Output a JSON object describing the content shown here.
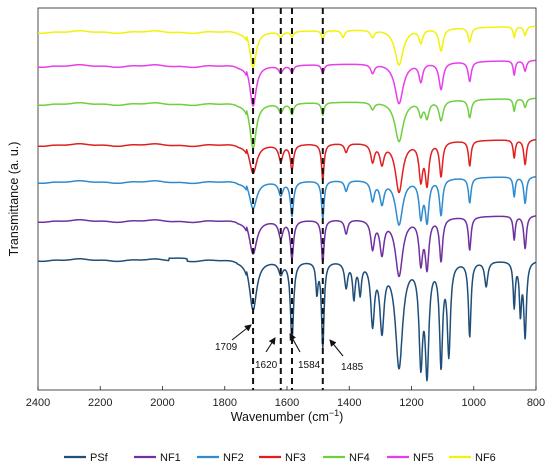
{
  "chart_data": {
    "type": "line",
    "title": "",
    "xlabel": "Wavenumber (cm",
    "xlabel_sup": "−1",
    "xlabel_close": ")",
    "ylabel": "Transmittance (a. u.)",
    "xlim": [
      2400,
      800
    ],
    "x_reversed": true,
    "x_ticks": [
      "2400",
      "2200",
      "2000",
      "1800",
      "1600",
      "1400",
      "1200",
      "1000",
      "800"
    ],
    "grid": false,
    "legend_position": "bottom",
    "reference_lines": [
      1709,
      1620,
      1584,
      1485
    ],
    "annotations": [
      {
        "text": "1709",
        "x": 1709
      },
      {
        "text": "1620",
        "x": 1620
      },
      {
        "text": "1584",
        "x": 1584
      },
      {
        "text": "1485",
        "x": 1485
      }
    ],
    "series": [
      {
        "name": "PSf",
        "color": "#1f4e79",
        "offset": 0,
        "peaks": [
          [
            1709,
            50,
            14
          ],
          [
            1620,
            12,
            8
          ],
          [
            1584,
            80,
            6
          ],
          [
            1504,
            30,
            4
          ],
          [
            1485,
            85,
            5
          ],
          [
            1410,
            25,
            6
          ],
          [
            1385,
            35,
            5
          ],
          [
            1365,
            30,
            5
          ],
          [
            1325,
            60,
            7
          ],
          [
            1295,
            65,
            8
          ],
          [
            1240,
            105,
            14
          ],
          [
            1170,
            95,
            7
          ],
          [
            1150,
            105,
            7
          ],
          [
            1105,
            100,
            6
          ],
          [
            1080,
            90,
            6
          ],
          [
            1013,
            75,
            5
          ],
          [
            960,
            25,
            6
          ],
          [
            870,
            45,
            4
          ],
          [
            850,
            50,
            4
          ],
          [
            835,
            75,
            5
          ]
        ]
      },
      {
        "name": "NF1",
        "color": "#7030a0",
        "offset": 1,
        "peaks": [
          [
            1709,
            35,
            14
          ],
          [
            1620,
            18,
            8
          ],
          [
            1584,
            40,
            6
          ],
          [
            1485,
            45,
            5
          ],
          [
            1410,
            15,
            6
          ],
          [
            1325,
            30,
            7
          ],
          [
            1295,
            35,
            8
          ],
          [
            1240,
            60,
            14
          ],
          [
            1170,
            45,
            7
          ],
          [
            1150,
            50,
            7
          ],
          [
            1105,
            45,
            6
          ],
          [
            1013,
            35,
            5
          ],
          [
            870,
            25,
            4
          ],
          [
            835,
            35,
            5
          ]
        ]
      },
      {
        "name": "NF2",
        "color": "#2e8bd0",
        "offset": 2,
        "peaks": [
          [
            1709,
            30,
            14
          ],
          [
            1620,
            15,
            8
          ],
          [
            1584,
            38,
            6
          ],
          [
            1485,
            42,
            5
          ],
          [
            1410,
            12,
            6
          ],
          [
            1325,
            22,
            7
          ],
          [
            1295,
            25,
            8
          ],
          [
            1240,
            50,
            14
          ],
          [
            1170,
            40,
            7
          ],
          [
            1150,
            45,
            7
          ],
          [
            1105,
            40,
            6
          ],
          [
            1013,
            28,
            5
          ],
          [
            870,
            22,
            4
          ],
          [
            835,
            30,
            5
          ]
        ]
      },
      {
        "name": "NF3",
        "color": "#e02020",
        "offset": 3,
        "peaks": [
          [
            1709,
            32,
            14
          ],
          [
            1620,
            18,
            8
          ],
          [
            1584,
            28,
            6
          ],
          [
            1485,
            40,
            5
          ],
          [
            1410,
            10,
            6
          ],
          [
            1325,
            20,
            7
          ],
          [
            1295,
            22,
            8
          ],
          [
            1240,
            55,
            14
          ],
          [
            1170,
            40,
            7
          ],
          [
            1150,
            45,
            7
          ],
          [
            1105,
            38,
            6
          ],
          [
            1013,
            28,
            5
          ],
          [
            870,
            20,
            4
          ],
          [
            835,
            28,
            5
          ]
        ]
      },
      {
        "name": "NF4",
        "color": "#6fcf3f",
        "offset": 4,
        "peaks": [
          [
            1709,
            50,
            12
          ],
          [
            1620,
            10,
            8
          ],
          [
            1584,
            12,
            6
          ],
          [
            1485,
            14,
            5
          ],
          [
            1325,
            8,
            7
          ],
          [
            1240,
            45,
            16
          ],
          [
            1170,
            15,
            7
          ],
          [
            1150,
            18,
            7
          ],
          [
            1105,
            22,
            8
          ],
          [
            1013,
            20,
            6
          ],
          [
            870,
            14,
            4
          ],
          [
            835,
            10,
            5
          ]
        ]
      },
      {
        "name": "NF5",
        "color": "#e83ee8",
        "offset": 5,
        "peaks": [
          [
            1709,
            45,
            12
          ],
          [
            1620,
            8,
            8
          ],
          [
            1584,
            8,
            6
          ],
          [
            1485,
            10,
            5
          ],
          [
            1325,
            10,
            7
          ],
          [
            1240,
            45,
            16
          ],
          [
            1170,
            20,
            7
          ],
          [
            1105,
            30,
            8
          ],
          [
            1013,
            22,
            6
          ],
          [
            870,
            16,
            4
          ],
          [
            835,
            12,
            5
          ]
        ]
      },
      {
        "name": "NF6",
        "color": "#f2f20a",
        "offset": 6,
        "peaks": [
          [
            1709,
            40,
            12
          ],
          [
            1620,
            6,
            8
          ],
          [
            1584,
            6,
            6
          ],
          [
            1485,
            10,
            5
          ],
          [
            1420,
            8,
            6
          ],
          [
            1325,
            8,
            7
          ],
          [
            1240,
            40,
            16
          ],
          [
            1170,
            15,
            7
          ],
          [
            1105,
            25,
            8
          ],
          [
            1013,
            16,
            6
          ],
          [
            870,
            12,
            4
          ],
          [
            835,
            10,
            5
          ]
        ]
      }
    ]
  }
}
